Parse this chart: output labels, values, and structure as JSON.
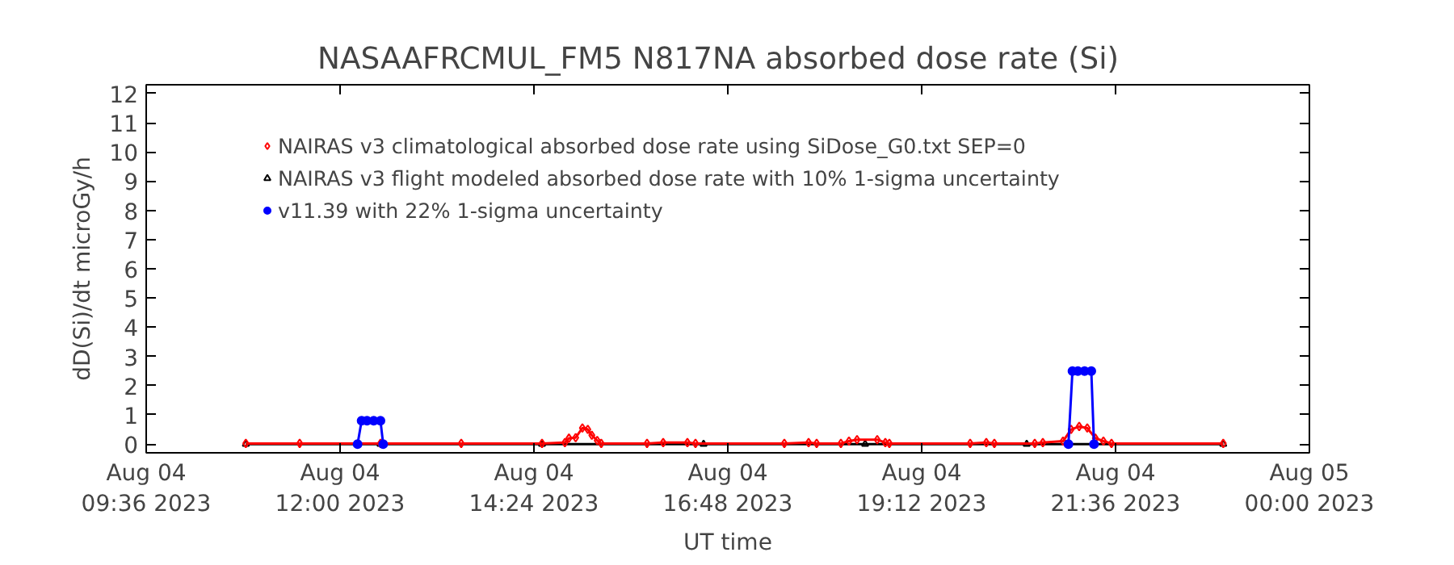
{
  "chart_data": {
    "type": "line",
    "title": "NASAAFRCMUL_FM5   N817NA absorbed dose rate (Si)",
    "xlabel": "UT time",
    "ylabel": "dD(Si)/dt microGy/h",
    "xlim": [
      "2023-08-04T09:36",
      "2023-08-05T00:00"
    ],
    "xticks": [
      {
        "value": "2023-08-04T09:36",
        "label": "Aug 04\n09:36 2023"
      },
      {
        "value": "2023-08-04T12:00",
        "label": "Aug 04\n12:00 2023"
      },
      {
        "value": "2023-08-04T14:24",
        "label": "Aug 04\n14:24 2023"
      },
      {
        "value": "2023-08-04T16:48",
        "label": "Aug 04\n16:48 2023"
      },
      {
        "value": "2023-08-04T19:12",
        "label": "Aug 04\n19:12 2023"
      },
      {
        "value": "2023-08-04T21:36",
        "label": "Aug 04\n21:36 2023"
      },
      {
        "value": "2023-08-05T00:00",
        "label": "Aug 05\n00:00 2023"
      }
    ],
    "ylim": [
      -0.3,
      12.3
    ],
    "yticks": [
      0,
      1,
      2,
      3,
      4,
      5,
      6,
      7,
      8,
      9,
      10,
      11,
      12
    ],
    "grid": false,
    "legend": "top left",
    "series": [
      {
        "name": "NAIRAS v3 flight modeled absorbed dose rate with 10% 1-sigma uncertainty",
        "color": "#000000",
        "marker": "triangle",
        "x": [
          "2023-08-04T10:50",
          "2023-08-04T12:30",
          "2023-08-04T14:30",
          "2023-08-04T16:30",
          "2023-08-04T18:30",
          "2023-08-04T20:30",
          "2023-08-04T22:56"
        ],
        "values": [
          0,
          0,
          0,
          0,
          0,
          0,
          0
        ]
      },
      {
        "name": "NAIRAS v3 climatological absorbed dose rate using SiDose_G0.txt SEP=0",
        "color": "#ff0000",
        "marker": "diamond",
        "x": [
          "2023-08-04T10:50",
          "2023-08-04T11:30",
          "2023-08-04T12:30",
          "2023-08-04T13:30",
          "2023-08-04T14:30",
          "2023-08-04T14:47",
          "2023-08-04T14:50",
          "2023-08-04T14:55",
          "2023-08-04T15:00",
          "2023-08-04T15:04",
          "2023-08-04T15:07",
          "2023-08-04T15:11",
          "2023-08-04T15:14",
          "2023-08-04T15:48",
          "2023-08-04T16:00",
          "2023-08-04T16:18",
          "2023-08-04T16:24",
          "2023-08-04T17:30",
          "2023-08-04T17:48",
          "2023-08-04T17:54",
          "2023-08-04T18:12",
          "2023-08-04T18:18",
          "2023-08-04T18:24",
          "2023-08-04T18:39",
          "2023-08-04T18:45",
          "2023-08-04T18:48",
          "2023-08-04T19:48",
          "2023-08-04T20:00",
          "2023-08-04T20:06",
          "2023-08-04T20:36",
          "2023-08-04T20:42",
          "2023-08-04T20:57",
          "2023-08-04T21:03",
          "2023-08-04T21:09",
          "2023-08-04T21:15",
          "2023-08-04T21:21",
          "2023-08-04T21:27",
          "2023-08-04T21:33",
          "2023-08-04T22:56"
        ],
        "values": [
          0.02,
          0.02,
          0.02,
          0.02,
          0.02,
          0.05,
          0.2,
          0.22,
          0.55,
          0.5,
          0.3,
          0.12,
          0.02,
          0.02,
          0.05,
          0.05,
          0.02,
          0.02,
          0.05,
          0.02,
          0.02,
          0.1,
          0.15,
          0.15,
          0.05,
          0.02,
          0.02,
          0.05,
          0.02,
          0.02,
          0.05,
          0.1,
          0.5,
          0.6,
          0.55,
          0.2,
          0.1,
          0.02,
          0.02
        ]
      },
      {
        "name": "v11.39 with 22% 1-sigma uncertainty",
        "color": "#0000ff",
        "marker": "circle",
        "x": [
          "2023-08-04T12:13",
          "2023-08-04T12:16",
          "2023-08-04T12:20",
          "2023-08-04T12:25",
          "2023-08-04T12:30",
          "2023-08-04T12:32",
          "2023-08-04T16:00",
          "2023-08-04T21:01",
          "2023-08-04T21:04",
          "2023-08-04T21:08",
          "2023-08-04T21:13",
          "2023-08-04T21:18",
          "2023-08-04T21:20"
        ],
        "values": [
          0,
          0.8,
          0.8,
          0.8,
          0.8,
          0,
          null,
          0,
          2.5,
          2.5,
          2.5,
          2.5,
          0
        ]
      }
    ]
  }
}
